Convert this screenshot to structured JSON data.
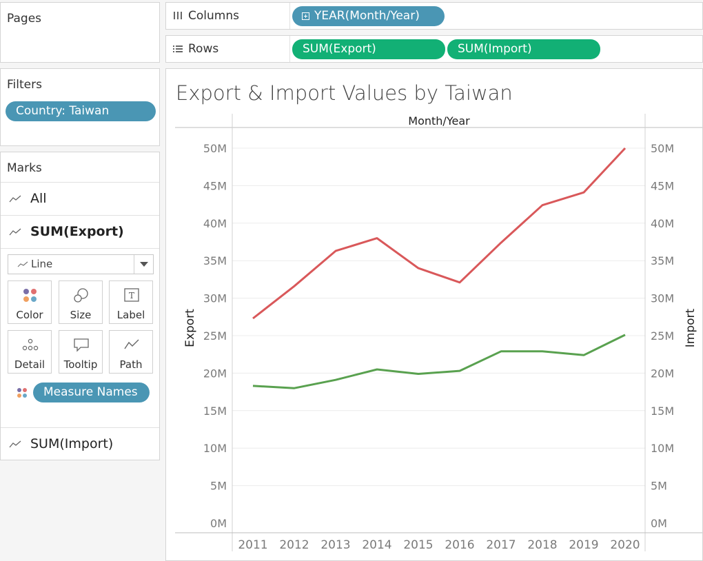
{
  "pages": {
    "title": "Pages"
  },
  "filters": {
    "title": "Filters",
    "pill": "Country: Taiwan"
  },
  "marks": {
    "title": "Marks",
    "all_label": "All",
    "export_label": "SUM(Export)",
    "import_label": "SUM(Import)",
    "mark_type": "Line",
    "buttons": [
      {
        "label": "Color",
        "icon": "color-icon"
      },
      {
        "label": "Size",
        "icon": "size-icon"
      },
      {
        "label": "Label",
        "icon": "label-icon"
      },
      {
        "label": "Detail",
        "icon": "detail-icon"
      },
      {
        "label": "Tooltip",
        "icon": "tooltip-icon"
      },
      {
        "label": "Path",
        "icon": "path-icon"
      }
    ],
    "color_pill": "Measure Names"
  },
  "shelves": {
    "columns": {
      "label": "Columns",
      "pill": "YEAR(Month/Year)"
    },
    "rows": {
      "label": "Rows",
      "pills": [
        "SUM(Export)",
        "SUM(Import)"
      ]
    }
  },
  "colors": {
    "export": "#d9585a",
    "import": "#59a14f",
    "pill_blue": "#4a96b4",
    "pill_green": "#12b075"
  },
  "chart_data": {
    "type": "line",
    "title": "Export & Import Values by Taiwan",
    "xlabel": "Month/Year",
    "ylabel_left": "Export",
    "ylabel_right": "Import",
    "x": [
      2011,
      2012,
      2013,
      2014,
      2015,
      2016,
      2017,
      2018,
      2019,
      2020
    ],
    "ylim": [
      0,
      50000000
    ],
    "yticks": [
      "0M",
      "5M",
      "10M",
      "15M",
      "20M",
      "25M",
      "30M",
      "35M",
      "40M",
      "45M",
      "50M"
    ],
    "grid": true,
    "series": [
      {
        "name": "SUM(Export)",
        "color": "#d9585a",
        "values": [
          27300000,
          31600000,
          36300000,
          38000000,
          34000000,
          32100000,
          37400000,
          42400000,
          44100000,
          50000000
        ]
      },
      {
        "name": "SUM(Import)",
        "color": "#59a14f",
        "values": [
          18300000,
          18000000,
          19100000,
          20500000,
          19900000,
          20300000,
          22900000,
          22900000,
          22400000,
          25100000
        ]
      }
    ]
  }
}
